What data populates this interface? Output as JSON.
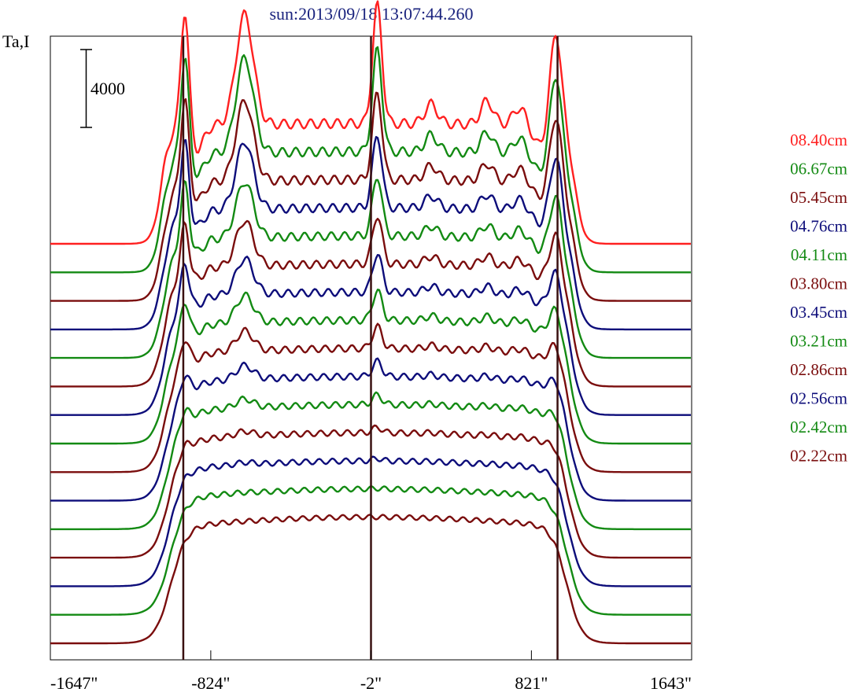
{
  "chart_data": {
    "type": "line",
    "title": "sun:2013/09/18 13:07:44.260",
    "ylabel": "Ta,I",
    "xlabel": "",
    "x_ticks": [
      "-1647\"",
      "-824\"",
      "-2\"",
      "821\"",
      "1643\""
    ],
    "x_tick_values": [
      -1647,
      -824,
      -2,
      821,
      1643
    ],
    "xlim": [
      -1647,
      1643
    ],
    "scale_bar_label": "4000",
    "scale_bar_value": 4000,
    "vertical_lines": [
      -965,
      -2,
      955
    ],
    "grid": false,
    "legend_placement": "right",
    "colors": {
      "red": "#ff2020",
      "green": "#138a13",
      "maroon": "#7a0d0d",
      "navy": "#0d0d7a",
      "vline": "#3a1010",
      "title": "#1a237e"
    },
    "series": [
      {
        "name": "08.40cm",
        "color": "#ff2020"
      },
      {
        "name": "06.67cm",
        "color": "#138a13"
      },
      {
        "name": "05.45cm",
        "color": "#7a0d0d"
      },
      {
        "name": "04.76cm",
        "color": "#0d0d7a"
      },
      {
        "name": "04.11cm",
        "color": "#138a13"
      },
      {
        "name": "03.80cm",
        "color": "#7a0d0d"
      },
      {
        "name": "03.45cm",
        "color": "#0d0d7a"
      },
      {
        "name": "03.21cm",
        "color": "#138a13"
      },
      {
        "name": "02.86cm",
        "color": "#7a0d0d"
      },
      {
        "name": "02.56cm",
        "color": "#0d0d7a"
      },
      {
        "name": "02.42cm",
        "color": "#138a13"
      },
      {
        "name": "02.22cm",
        "color": "#7a0d0d"
      },
      {
        "color": "#0d0d7a"
      },
      {
        "color": "#138a13"
      },
      {
        "color": "#7a0d0d"
      }
    ]
  }
}
